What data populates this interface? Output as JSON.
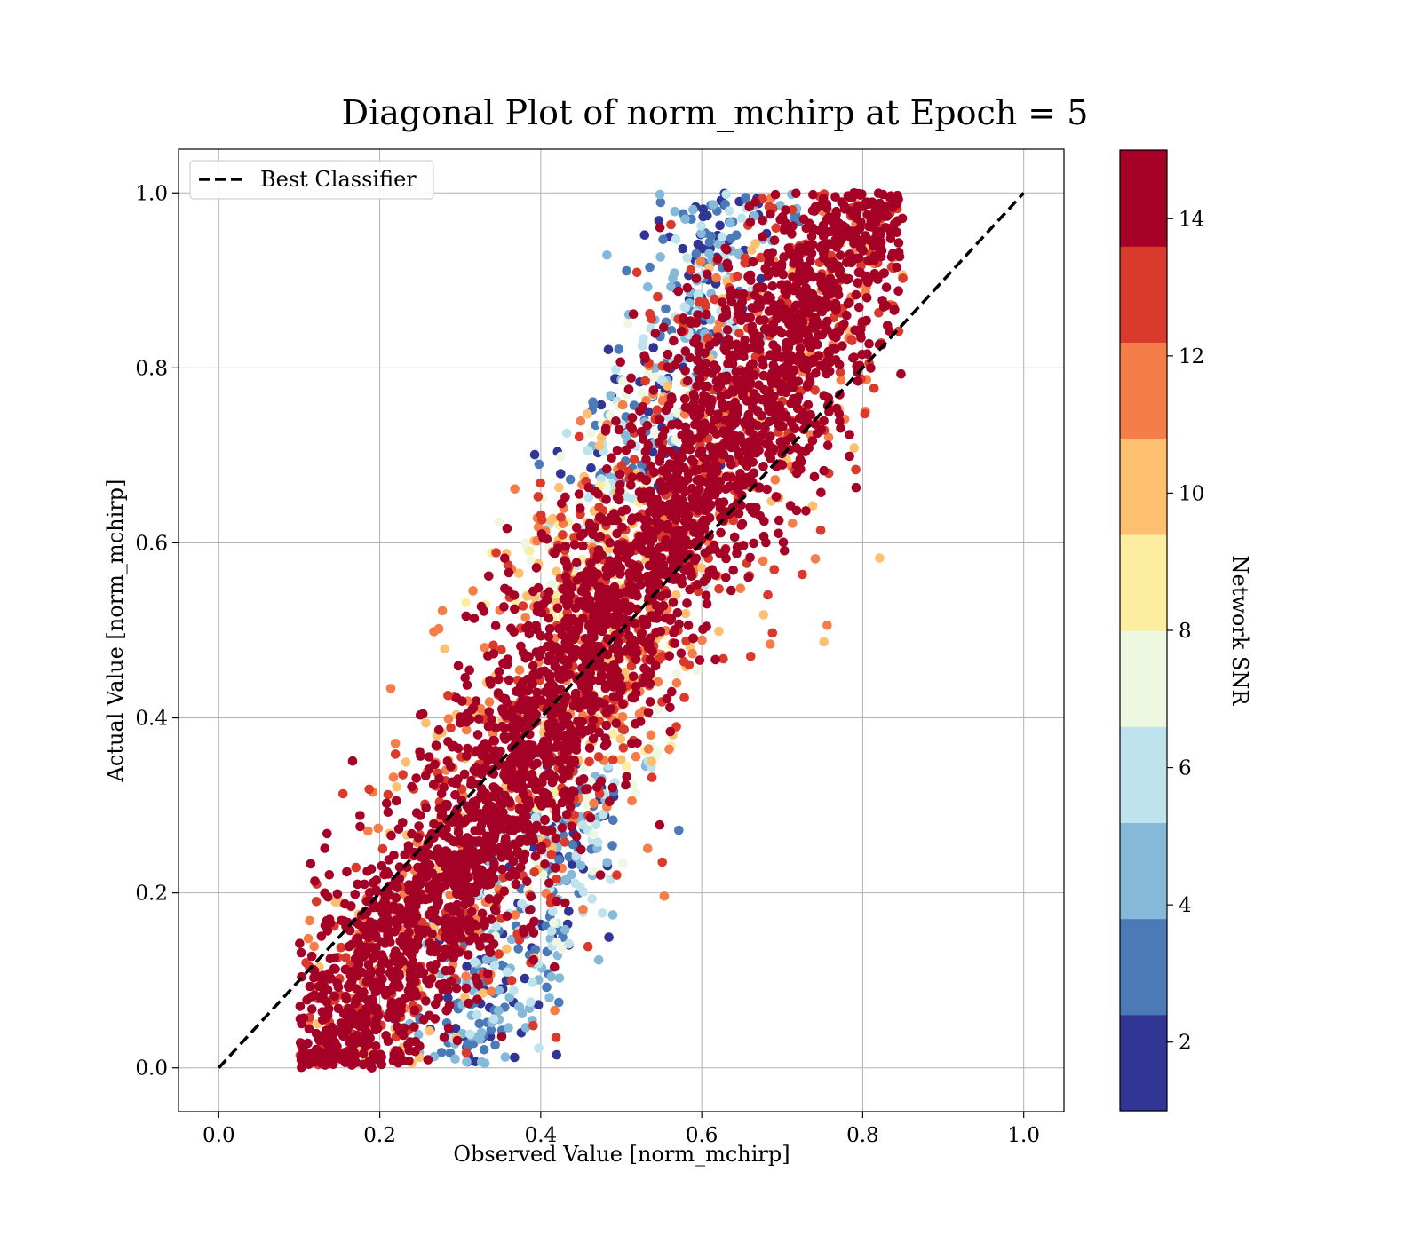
{
  "chart_data": {
    "type": "scatter",
    "title": "Diagonal Plot of norm_mchirp at Epoch = 5",
    "xlabel": "Observed Value [norm_mchirp]",
    "ylabel": "Actual Value [norm_mchirp]",
    "xlim": [
      -0.05,
      1.05
    ],
    "ylim": [
      -0.05,
      1.05
    ],
    "x_ticks": [
      "0.0",
      "0.2",
      "0.4",
      "0.6",
      "0.8",
      "1.0"
    ],
    "y_ticks": [
      "0.0",
      "0.2",
      "0.4",
      "0.6",
      "0.8",
      "1.0"
    ],
    "grid": true,
    "legend": {
      "position": "top-left",
      "entries": [
        "Best Classifier"
      ]
    },
    "reference_line": {
      "name": "Best Classifier",
      "style": "dashed",
      "color": "#000000",
      "x": [
        0.0,
        1.0
      ],
      "y": [
        0.0,
        1.0
      ]
    },
    "point_cloud": {
      "description_of_density": "points spread around the diagonal; high SNR dominate near diagonal, low SNR points at fringes",
      "approx_x_range": [
        0.1,
        0.85
      ],
      "approx_y_range": [
        0.0,
        1.0
      ],
      "regions": [
        {
          "snr": "high",
          "color_level": 14,
          "x_center_offset": 0.0,
          "spread_x": 0.07,
          "share": 0.7
        },
        {
          "snr": "mid",
          "color_level": 11,
          "x_center_offset": 0.0,
          "spread_x": 0.11,
          "share": 0.15
        },
        {
          "snr": "low",
          "color_level": 7,
          "x_center_offset": 0.13,
          "spread_x": 0.05,
          "share": 0.1
        },
        {
          "snr": "very_low",
          "color_level": 3,
          "x_center_offset": 0.17,
          "spread_x": 0.04,
          "share": 0.05
        }
      ]
    },
    "colorbar": {
      "label": "Network SNR",
      "range": [
        1,
        15
      ],
      "ticks": [
        "2",
        "4",
        "6",
        "8",
        "10",
        "12",
        "14"
      ],
      "tick_values": [
        2,
        4,
        6,
        8,
        10,
        12,
        14
      ],
      "colors": [
        "#313695",
        "#4a7bb7",
        "#85b9d9",
        "#bfe3ec",
        "#eef7e0",
        "#fdeda1",
        "#fdbf70",
        "#f57d4a",
        "#d93a2b",
        "#a50026"
      ]
    }
  }
}
